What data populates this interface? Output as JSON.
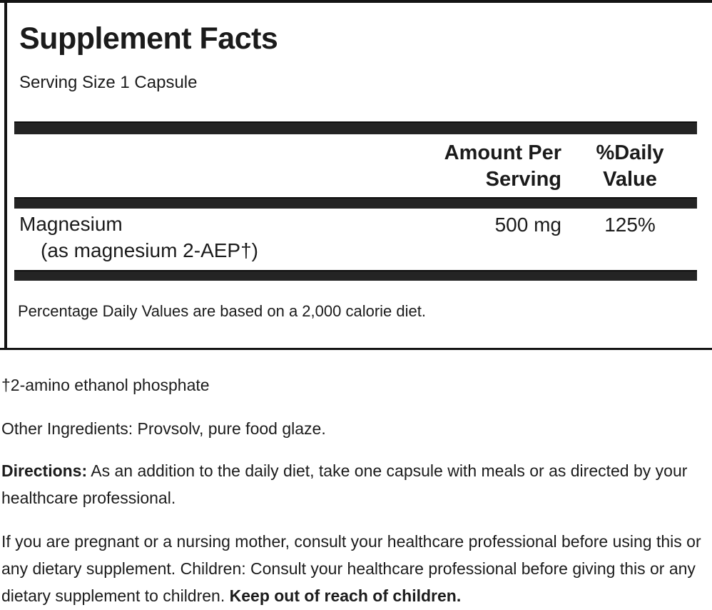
{
  "label": {
    "title": "Supplement Facts",
    "serving_size": "Serving Size 1 Capsule",
    "columns": {
      "amount_line1": "Amount Per",
      "amount_line2": "Serving",
      "daily_value_line1": "%Daily",
      "daily_value_line2": "Value"
    },
    "rows": [
      {
        "name": "Magnesium",
        "detail": "(as magnesium 2-AEP†)",
        "amount": "500 mg",
        "daily_value": "125%"
      }
    ],
    "footnote": "Percentage Daily Values are based on a 2,000 calorie diet."
  },
  "notes": {
    "dagger_note": "†2-amino ethanol phosphate",
    "other_ingredients": "Other Ingredients: Provsolv, pure food glaze.",
    "directions_label": "Directions:",
    "directions_text": " As an addition to the daily diet, take one capsule with meals or as directed by your healthcare professional.",
    "warning_text": "If you are pregnant or a nursing mother, consult your healthcare professional before using this or any dietary supplement. Children: Consult your healthcare professional before giving this or any dietary supplement to children. ",
    "warning_bold": "Keep out of reach of children."
  },
  "colors": {
    "text": "#1b1b1b",
    "bar": "#242424",
    "border": "#141414",
    "background": "#ffffff"
  }
}
